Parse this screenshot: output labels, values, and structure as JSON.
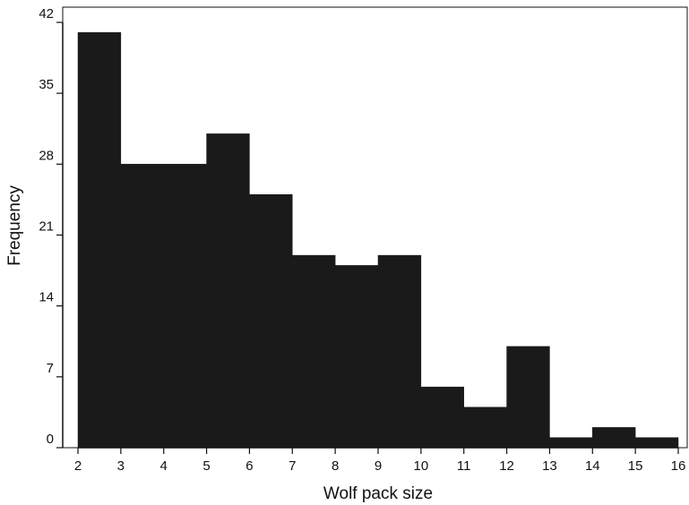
{
  "colors": {
    "bar_fill": "#1a1a1a",
    "axis": "#111111",
    "text": "#111111",
    "background": "#ffffff"
  },
  "chart_data": {
    "type": "bar",
    "subtype": "histogram",
    "title": "",
    "xlabel": "Wolf pack size",
    "ylabel": "Frequency",
    "bin_edges": [
      2,
      3,
      4,
      5,
      6,
      7,
      8,
      9,
      10,
      11,
      12,
      13,
      14,
      15,
      16
    ],
    "values": [
      41,
      28,
      28,
      31,
      25,
      19,
      18,
      19,
      6,
      4,
      10,
      1,
      2,
      1
    ],
    "xlim": [
      2,
      16
    ],
    "ylim": [
      0,
      42
    ],
    "x_ticks": [
      "2",
      "3",
      "4",
      "5",
      "6",
      "7",
      "8",
      "9",
      "10",
      "11",
      "12",
      "13",
      "14",
      "15",
      "16"
    ],
    "y_ticks": [
      "0",
      "7",
      "14",
      "21",
      "28",
      "35",
      "42"
    ],
    "grid": false,
    "legend": "none"
  }
}
